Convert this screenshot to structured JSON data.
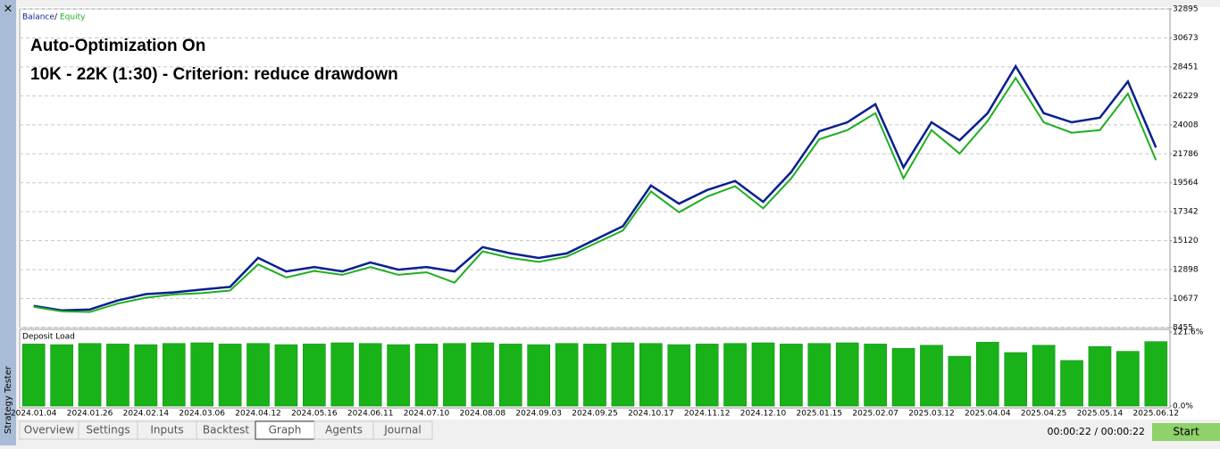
{
  "chart_data": [
    {
      "type": "line",
      "annotations": [
        "Auto-Optimization On",
        "10K - 22K (1:30) - Criterion: reduce drawdown"
      ],
      "legend_separator": "/",
      "categories": [
        "2024.01.04",
        null,
        "2024.01.26",
        null,
        "2024.02.14",
        null,
        "2024.03.06",
        null,
        "2024.04.12",
        null,
        "2024.05.16",
        null,
        "2024.06.11",
        null,
        "2024.07.10",
        null,
        "2024.08.08",
        null,
        "2024.09.03",
        null,
        "2024.09.25",
        null,
        "2024.10.17",
        null,
        "2024.11.12",
        null,
        "2024.12.10",
        null,
        "2025.01.15",
        null,
        "2025.02.07",
        null,
        "2025.03.12",
        null,
        "2025.04.04",
        null,
        "2025.04.25",
        null,
        "2025.05.14",
        null,
        "2025.06.12"
      ],
      "series": [
        {
          "name": "Balance",
          "color": "#0a1f8f",
          "values": [
            10120,
            9775,
            9843,
            10537,
            11023,
            11160,
            11370,
            11578,
            13800,
            12760,
            13100,
            12760,
            13450,
            12900,
            13100,
            12760,
            14630,
            14145,
            13800,
            14145,
            15190,
            16230,
            19350,
            17960,
            19000,
            19700,
            18100,
            20390,
            23510,
            24200,
            25590,
            20740,
            24200,
            22820,
            24900,
            28500,
            24900,
            24200,
            24550,
            27330,
            22270
          ]
        },
        {
          "name": "Equity",
          "color": "#1fae1f",
          "values": [
            10050,
            9700,
            9650,
            10300,
            10750,
            11000,
            11100,
            11300,
            13300,
            12300,
            12800,
            12500,
            13100,
            12500,
            12700,
            11900,
            14300,
            13800,
            13500,
            13900,
            14900,
            15900,
            18900,
            17300,
            18500,
            19300,
            17600,
            19900,
            22900,
            23600,
            24900,
            19900,
            23600,
            21800,
            24300,
            27600,
            24200,
            23400,
            23600,
            26400,
            21300
          ]
        }
      ],
      "ylim": [
        8455,
        32895
      ],
      "yticks": [
        8455,
        10677,
        12898,
        15120,
        17342,
        19564,
        21786,
        24008,
        26229,
        28451,
        30673,
        32895
      ],
      "grid": true
    },
    {
      "type": "bar",
      "title": "Deposit Load",
      "categories": [
        "2024.01.04",
        null,
        "2024.01.26",
        null,
        "2024.02.14",
        null,
        "2024.03.06",
        null,
        "2024.04.12",
        null,
        "2024.05.16",
        null,
        "2024.06.11",
        null,
        "2024.07.10",
        null,
        "2024.08.08",
        null,
        "2024.09.03",
        null,
        "2024.09.25",
        null,
        "2024.10.17",
        null,
        "2024.11.12",
        null,
        "2024.12.10",
        null,
        "2025.01.15",
        null,
        "2025.02.07",
        null,
        "2025.03.12",
        null,
        "2025.04.04",
        null,
        "2025.04.25",
        null,
        "2025.05.14",
        null,
        "2025.06.12"
      ],
      "values": [
        102,
        101,
        103,
        102,
        101,
        103,
        104,
        102,
        103,
        101,
        102,
        104,
        103,
        101,
        102,
        103,
        104,
        102,
        101,
        103,
        102,
        104,
        103,
        101,
        102,
        103,
        104,
        102,
        103,
        104,
        102,
        95,
        100,
        82,
        105,
        88,
        100,
        75,
        98,
        90,
        106
      ],
      "color": "#19b219",
      "ylim": [
        0,
        121.6
      ],
      "yticks": [
        {
          "value": 0,
          "label": "0.0%"
        },
        {
          "value": 121.6,
          "label": "121.6%"
        }
      ]
    }
  ],
  "ui": {
    "close": "×",
    "sidebar_title": "Strategy Tester",
    "tabs": [
      "Overview",
      "Settings",
      "Inputs",
      "Backtest",
      "Graph",
      "Agents",
      "Journal"
    ],
    "active_tab": 4,
    "timer": "00:00:22 / 00:00:22",
    "start_button": "Start"
  }
}
